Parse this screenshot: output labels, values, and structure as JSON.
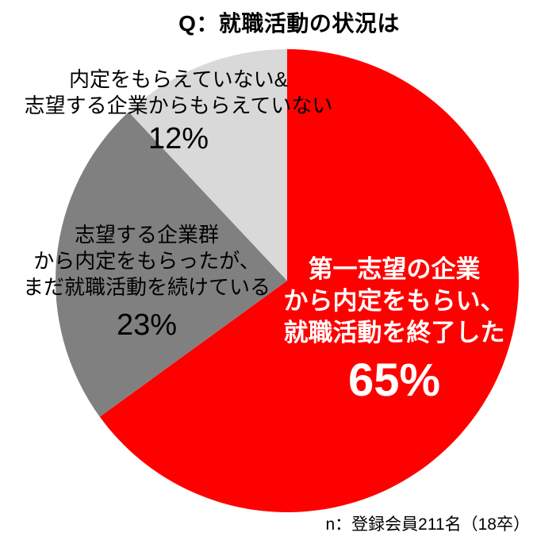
{
  "chart_data": {
    "type": "pie",
    "title": "Q：就職活動の状況は",
    "note": "n：登録会員211名（18卒）",
    "start_angle_deg": 0,
    "direction": "clockwise",
    "background": "#FFFFFF",
    "legend": "none",
    "slices": [
      {
        "label": "第一志望の企業から内定をもらい、就職活動を終了した",
        "label_lines": [
          "第一志望の企業",
          "から内定をもらい、",
          "就職活動を終了した"
        ],
        "value_pct": 65,
        "pct_label": "65%",
        "color": "#FF0000",
        "text_color": "#FFFFFF"
      },
      {
        "label": "志望する企業群から内定をもらったが、まだ就職活動を続けている",
        "label_lines": [
          "志望する企業群",
          "から内定をもらったが、",
          "まだ就職活動を続けている"
        ],
        "value_pct": 23,
        "pct_label": "23%",
        "color": "#808080",
        "text_color": "#000000"
      },
      {
        "label": "内定をもらえていない&志望する企業からもらえていない",
        "label_lines": [
          "内定をもらえていない&",
          "志望する企業からもらえていない"
        ],
        "value_pct": 12,
        "pct_label": "12%",
        "color": "#D9D9D9",
        "text_color": "#000000"
      }
    ]
  }
}
